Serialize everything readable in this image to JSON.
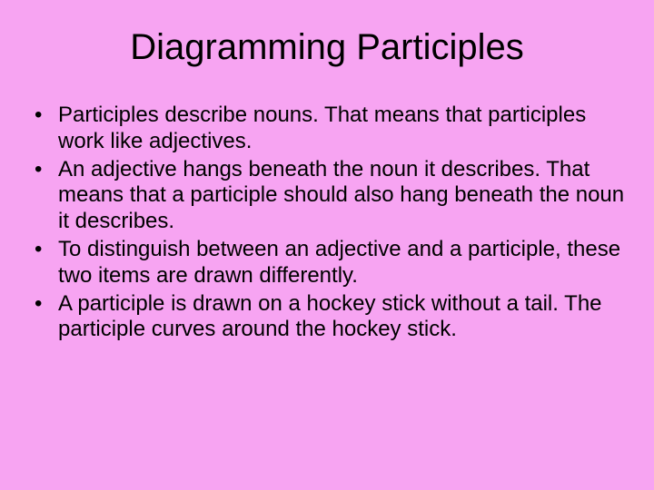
{
  "slide": {
    "title": "Diagramming Participles",
    "title_fontsize": 40,
    "title_color": "#000000",
    "body_fontsize": 24,
    "body_color": "#000000",
    "background_color": "#f7a4f2",
    "bullets": [
      "Participles describe nouns.  That means that participles work like adjectives.",
      "An adjective hangs beneath the noun it describes.  That means that a participle should also hang beneath the noun it describes.",
      "To distinguish between an adjective and a participle, these two items are drawn differently.",
      "A participle is drawn on a hockey stick without a tail.  The participle curves around the hockey stick."
    ]
  }
}
